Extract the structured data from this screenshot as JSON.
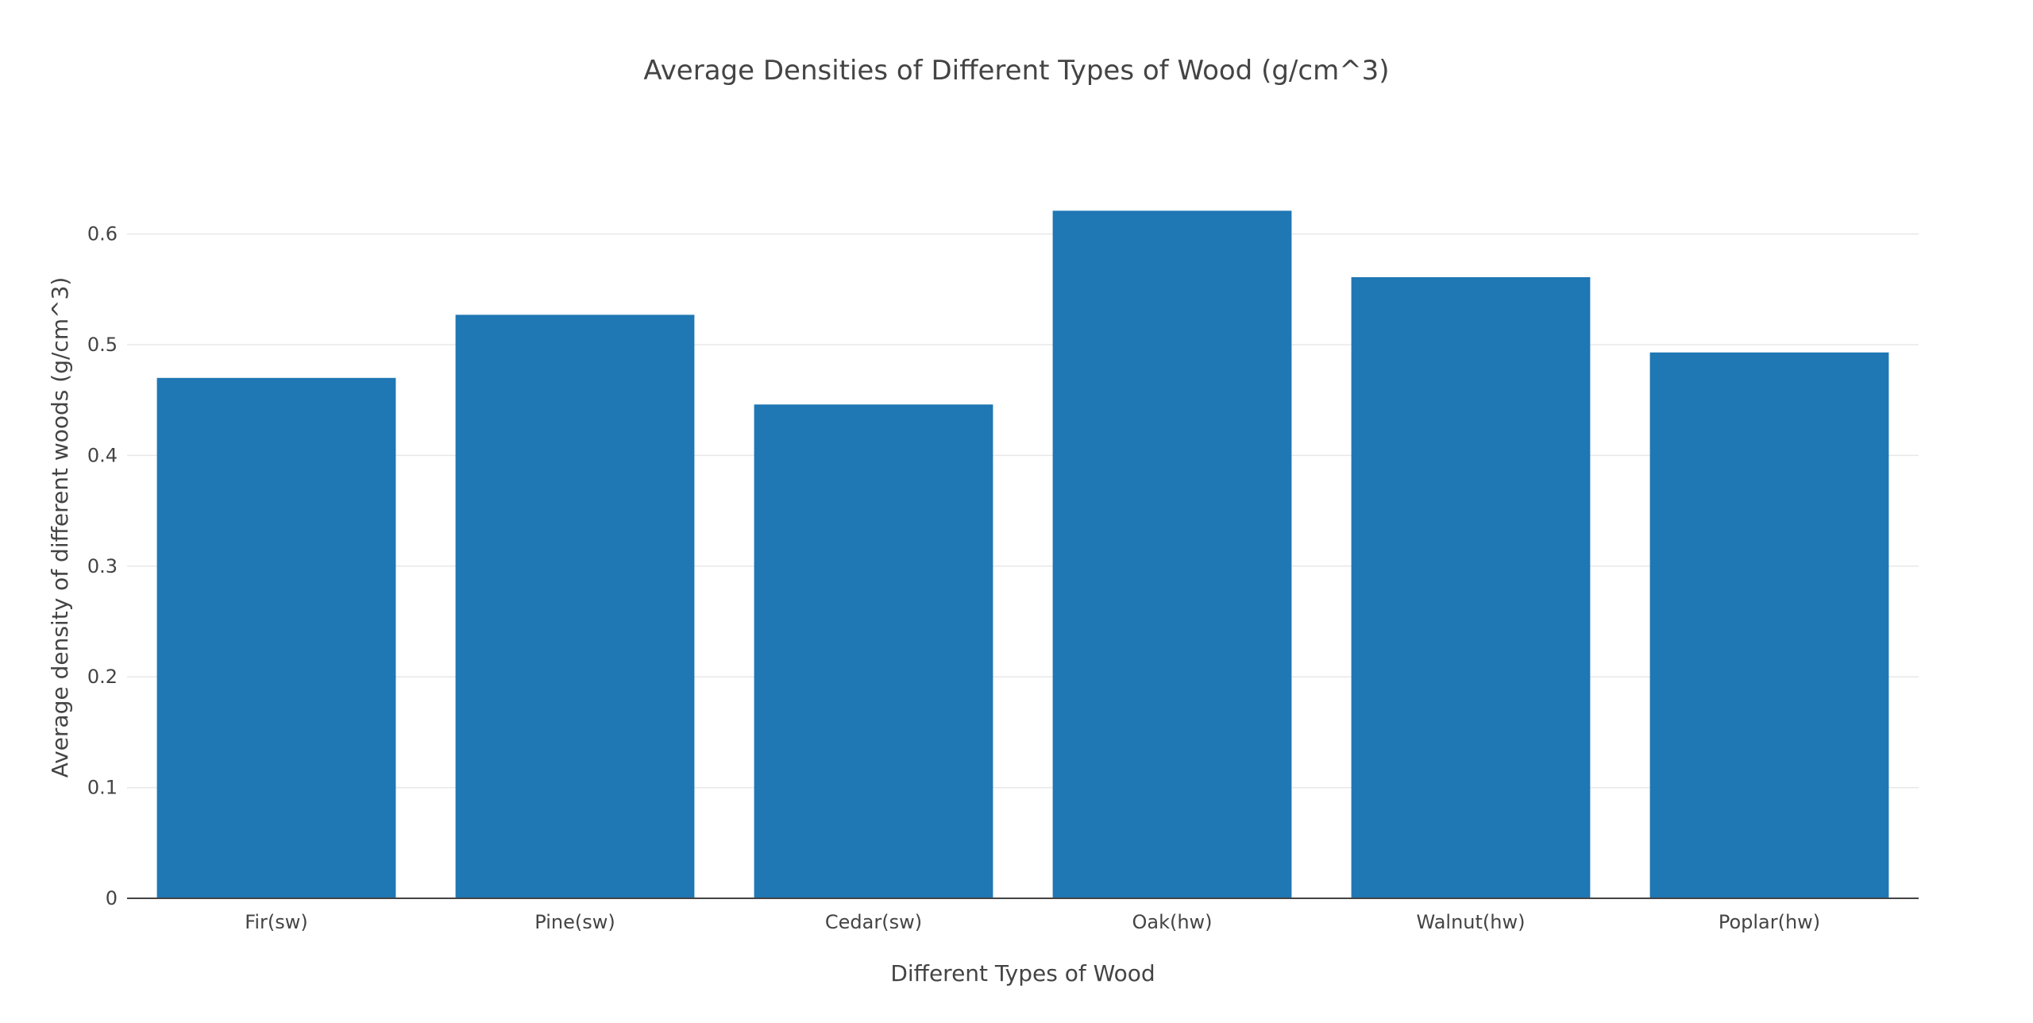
{
  "chart_data": {
    "type": "bar",
    "title": "Average Densities of Different Types of Wood (g/cm^3)",
    "xlabel": "Different Types of Wood",
    "ylabel": "Average density of different woods (g/cm^3)",
    "categories": [
      "Fir(sw)",
      "Pine(sw)",
      "Cedar(sw)",
      "Oak(hw)",
      "Walnut(hw)",
      "Poplar(hw)"
    ],
    "values": [
      0.47,
      0.527,
      0.446,
      0.621,
      0.561,
      0.493
    ],
    "ylim": [
      0,
      0.6535
    ],
    "yticks": [
      "0",
      "0.1",
      "0.2",
      "0.3",
      "0.4",
      "0.5",
      "0.6"
    ],
    "grid": true,
    "bar_color": "#1f77b4"
  }
}
